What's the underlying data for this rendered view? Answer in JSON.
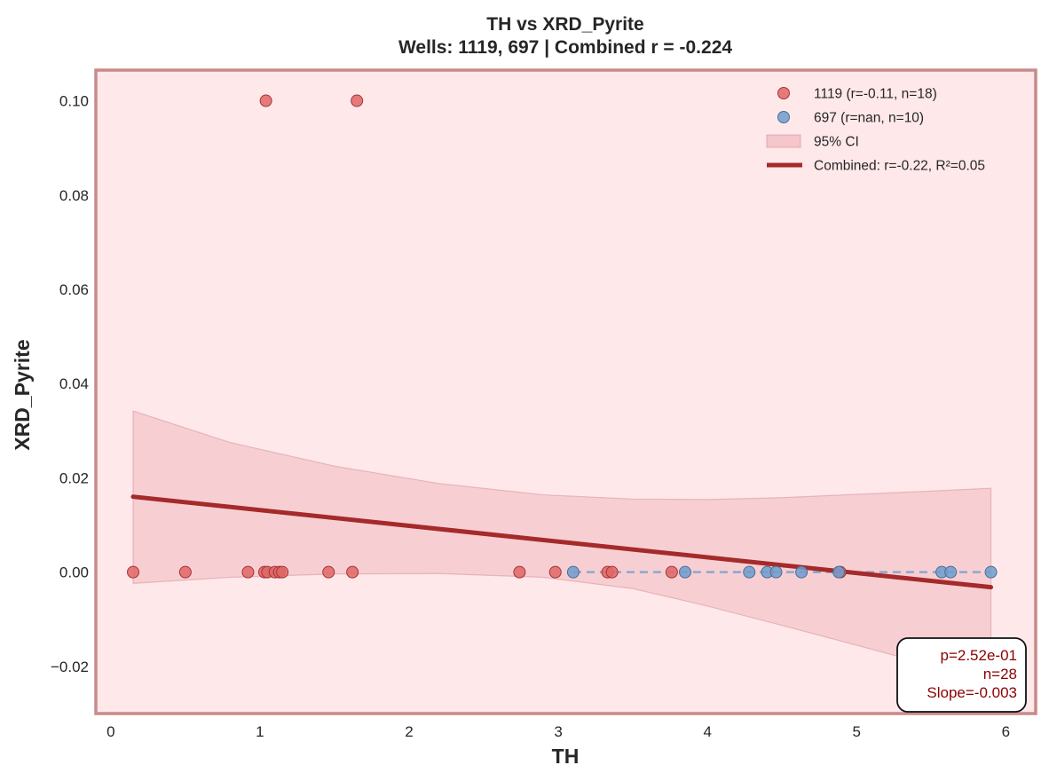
{
  "chart_data": {
    "type": "scatter",
    "title": "TH vs XRD_Pyrite",
    "subtitle": "Wells: 1119, 697 | Combined r = -0.224",
    "xlabel": "TH",
    "ylabel": "XRD_Pyrite",
    "xlim": [
      -0.1,
      6.2
    ],
    "ylim": [
      -0.03,
      0.1065
    ],
    "xticks": [
      0,
      1,
      2,
      3,
      4,
      5,
      6
    ],
    "xtick_labels": [
      "0",
      "1",
      "2",
      "3",
      "4",
      "5",
      "6"
    ],
    "yticks": [
      -0.02,
      0.0,
      0.02,
      0.04,
      0.06,
      0.08,
      0.1
    ],
    "ytick_labels": [
      "−0.02",
      "0.00",
      "0.02",
      "0.04",
      "0.06",
      "0.08",
      "0.10"
    ],
    "grid": false,
    "legend_position": "top-right",
    "background_color": "#ffe8ea",
    "frame_color": "#c98a8a",
    "series": [
      {
        "name": "1119 (r=-0.11, n=18)",
        "color": "#e06666",
        "edge_color": "#a33333",
        "points": [
          [
            0.15,
            0.0
          ],
          [
            0.5,
            0.0
          ],
          [
            0.92,
            0.0
          ],
          [
            1.03,
            0.0
          ],
          [
            1.05,
            0.0
          ],
          [
            1.1,
            0.0
          ],
          [
            1.13,
            0.0
          ],
          [
            1.15,
            0.0
          ],
          [
            1.46,
            0.0
          ],
          [
            1.62,
            0.0
          ],
          [
            2.74,
            0.0
          ],
          [
            2.98,
            0.0
          ],
          [
            3.33,
            0.0
          ],
          [
            3.36,
            0.0
          ],
          [
            3.76,
            0.0
          ],
          [
            4.89,
            0.0
          ],
          [
            1.04,
            0.1
          ],
          [
            1.65,
            0.1
          ]
        ]
      },
      {
        "name": "697 (r=nan, n=10)",
        "color": "#6f9ccc",
        "edge_color": "#4a6d96",
        "points": [
          [
            3.1,
            0.0
          ],
          [
            3.85,
            0.0
          ],
          [
            4.28,
            0.0
          ],
          [
            4.4,
            0.0
          ],
          [
            4.46,
            0.0
          ],
          [
            4.63,
            0.0
          ],
          [
            4.88,
            0.0
          ],
          [
            5.57,
            0.0
          ],
          [
            5.63,
            0.0
          ],
          [
            5.9,
            0.0
          ]
        ],
        "fit_line": {
          "x": [
            3.1,
            5.9
          ],
          "y": [
            0.0,
            0.0
          ],
          "style": "dashed"
        }
      }
    ],
    "combined_fit": {
      "name": "Combined: r=-0.22, R²=0.05",
      "color": "#a52a2a",
      "x": [
        0.15,
        5.9
      ],
      "y": [
        0.016,
        -0.0032
      ]
    },
    "confidence_band": {
      "name": "95% CI",
      "color": "#e8a0a8",
      "x": [
        0.15,
        0.8,
        1.5,
        2.2,
        2.9,
        3.5,
        4.0,
        4.5,
        5.0,
        5.5,
        5.9
      ],
      "upper": [
        0.0342,
        0.0275,
        0.0225,
        0.0188,
        0.0164,
        0.0155,
        0.0154,
        0.0158,
        0.0165,
        0.0172,
        0.0178
      ],
      "lower": [
        -0.0024,
        -0.0011,
        -0.0004,
        -0.0003,
        -0.0011,
        -0.0035,
        -0.0072,
        -0.0113,
        -0.0155,
        -0.0198,
        -0.0232
      ]
    },
    "stats_box": {
      "lines": [
        "p=2.52e-01",
        "n=28",
        "Slope=-0.003"
      ]
    }
  }
}
